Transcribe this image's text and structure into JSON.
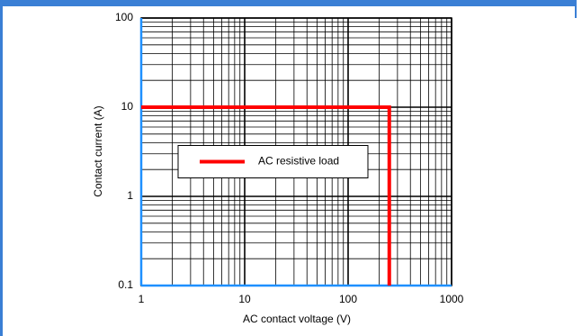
{
  "chart_data": {
    "type": "line",
    "x_label": "AC contact voltage (V)",
    "y_label": "Contact current (A)",
    "xscale": "log",
    "yscale": "log",
    "xlim": [
      1,
      1000
    ],
    "xticks": [
      1,
      10,
      100,
      1000
    ],
    "ylim": [
      0.1,
      100
    ],
    "yticks": [
      0.1,
      1,
      10,
      100
    ],
    "grid": true,
    "legend": "center-left",
    "series": [
      {
        "name": "AC resistive load",
        "color": "#ff0000",
        "x": [
          1,
          250,
          250
        ],
        "values": [
          10,
          10,
          0.1
        ]
      }
    ]
  }
}
